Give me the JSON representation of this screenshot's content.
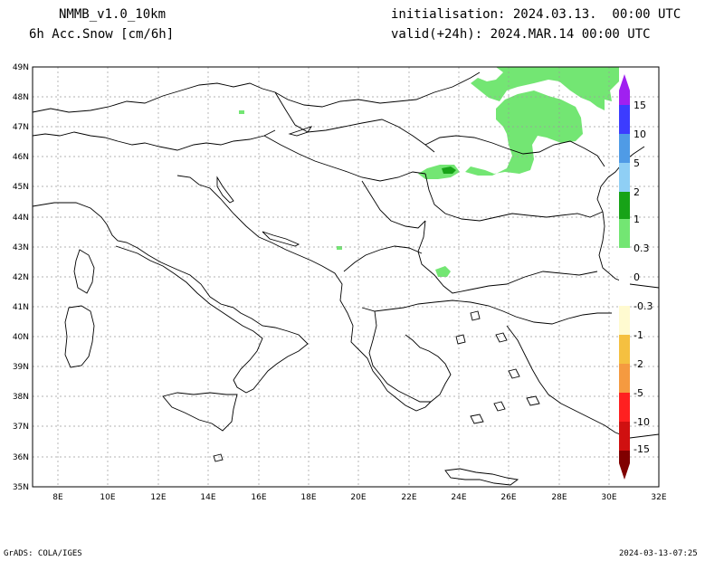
{
  "header": {
    "model": "NMMB_v1.0_10km",
    "variable": "6h Acc.Snow [cm/6h]",
    "init": "initialisation: 2024.03.13.  00:00 UTC",
    "valid": "valid(+24h): 2024.MAR.14 00:00 UTC"
  },
  "footer": {
    "left": "GrADS: COLA/IGES",
    "right": "2024-03-13-07:25"
  },
  "map": {
    "lat_labels": [
      "49N",
      "48N",
      "47N",
      "46N",
      "45N",
      "44N",
      "43N",
      "42N",
      "41N",
      "40N",
      "39N",
      "38N",
      "37N",
      "36N",
      "35N"
    ],
    "lon_labels": [
      "8E",
      "10E",
      "12E",
      "14E",
      "16E",
      "18E",
      "20E",
      "22E",
      "24E",
      "26E",
      "28E",
      "30E",
      "32E"
    ],
    "lat_range": [
      35,
      49
    ],
    "lon_range": [
      7,
      32
    ]
  },
  "colorbar": {
    "labels": [
      "15",
      "10",
      "5",
      "2",
      "1",
      "0.3",
      "0",
      "-0.3",
      "-1",
      "-2",
      "-5",
      "-10",
      "-15"
    ],
    "colors": {
      "c15": "#a020f0",
      "c10": "#3c3cff",
      "c5": "#4f9be6",
      "c2": "#8fcff5",
      "c1": "#17a317",
      "c03": "#73e673",
      "cneg03": "#fffad0",
      "cneg1": "#f5c040",
      "cneg2": "#f59a40",
      "cneg5": "#ff2020",
      "cneg10": "#d01010",
      "cneg15": "#800000"
    }
  },
  "colors": {
    "snow_light": "#73e673",
    "snow_dark": "#17a317"
  }
}
